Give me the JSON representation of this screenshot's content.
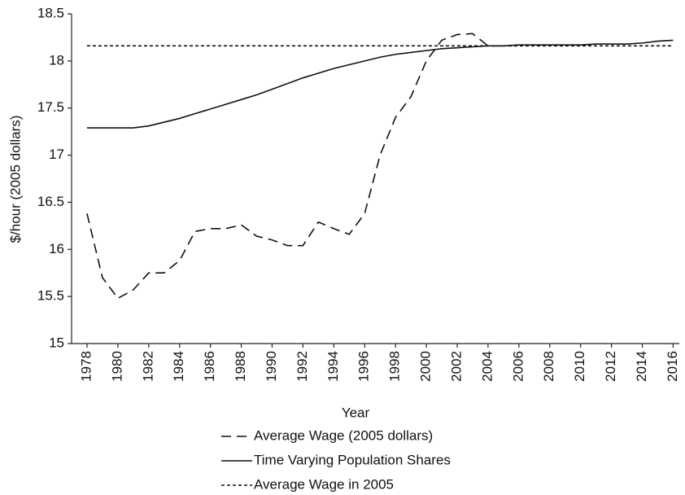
{
  "chart_data": {
    "type": "line",
    "x_label": "Year",
    "y_label": "$/hour (2005 dollars)",
    "x": [
      1978,
      1979,
      1980,
      1981,
      1982,
      1983,
      1984,
      1985,
      1986,
      1987,
      1988,
      1989,
      1990,
      1991,
      1992,
      1993,
      1994,
      1995,
      1996,
      1997,
      1998,
      1999,
      2000,
      2001,
      2002,
      2003,
      2004,
      2005,
      2006,
      2007,
      2008,
      2009,
      2010,
      2011,
      2012,
      2013,
      2014,
      2015,
      2016
    ],
    "xlim": [
      1977,
      2016.4
    ],
    "xticks": [
      1978,
      1980,
      1982,
      1984,
      1986,
      1988,
      1990,
      1992,
      1994,
      1996,
      1998,
      2000,
      2002,
      2004,
      2006,
      2008,
      2010,
      2012,
      2014,
      2016
    ],
    "ylim": [
      15,
      18.5
    ],
    "yticks": [
      15,
      15.5,
      16,
      16.5,
      17,
      17.5,
      18,
      18.5
    ],
    "grid": false,
    "legend_position": "bottom",
    "series": [
      {
        "name": "Average Wage (2005 dollars)",
        "color": "#111111",
        "dash": "12,7",
        "values": [
          16.38,
          15.7,
          15.48,
          15.57,
          15.75,
          15.75,
          15.88,
          16.19,
          16.22,
          16.22,
          16.26,
          16.14,
          16.1,
          16.04,
          16.04,
          16.29,
          16.22,
          16.16,
          16.38,
          17.0,
          17.4,
          17.62,
          18.0,
          18.22,
          18.28,
          18.29,
          18.16,
          18.16,
          null,
          null,
          null,
          null,
          null,
          null,
          null,
          null,
          null,
          null,
          null
        ]
      },
      {
        "name": "Time Varying Population Shares",
        "color": "#111111",
        "dash": "none",
        "values": [
          17.29,
          17.29,
          17.29,
          17.29,
          17.31,
          17.35,
          17.39,
          17.44,
          17.49,
          17.54,
          17.59,
          17.64,
          17.7,
          17.76,
          17.82,
          17.87,
          17.92,
          17.96,
          18.0,
          18.04,
          18.07,
          18.09,
          18.11,
          18.13,
          18.14,
          18.15,
          18.16,
          18.16,
          18.17,
          18.17,
          18.17,
          18.17,
          18.17,
          18.18,
          18.18,
          18.18,
          18.19,
          18.21,
          18.22
        ]
      },
      {
        "name": "Average Wage in 2005",
        "color": "#111111",
        "dash": "4,3",
        "values": [
          18.16,
          18.16,
          18.16,
          18.16,
          18.16,
          18.16,
          18.16,
          18.16,
          18.16,
          18.16,
          18.16,
          18.16,
          18.16,
          18.16,
          18.16,
          18.16,
          18.16,
          18.16,
          18.16,
          18.16,
          18.16,
          18.16,
          18.16,
          18.16,
          18.16,
          18.16,
          18.16,
          18.16,
          18.16,
          18.16,
          18.16,
          18.16,
          18.16,
          18.16,
          18.16,
          18.16,
          18.16,
          18.16,
          18.16
        ]
      }
    ]
  }
}
